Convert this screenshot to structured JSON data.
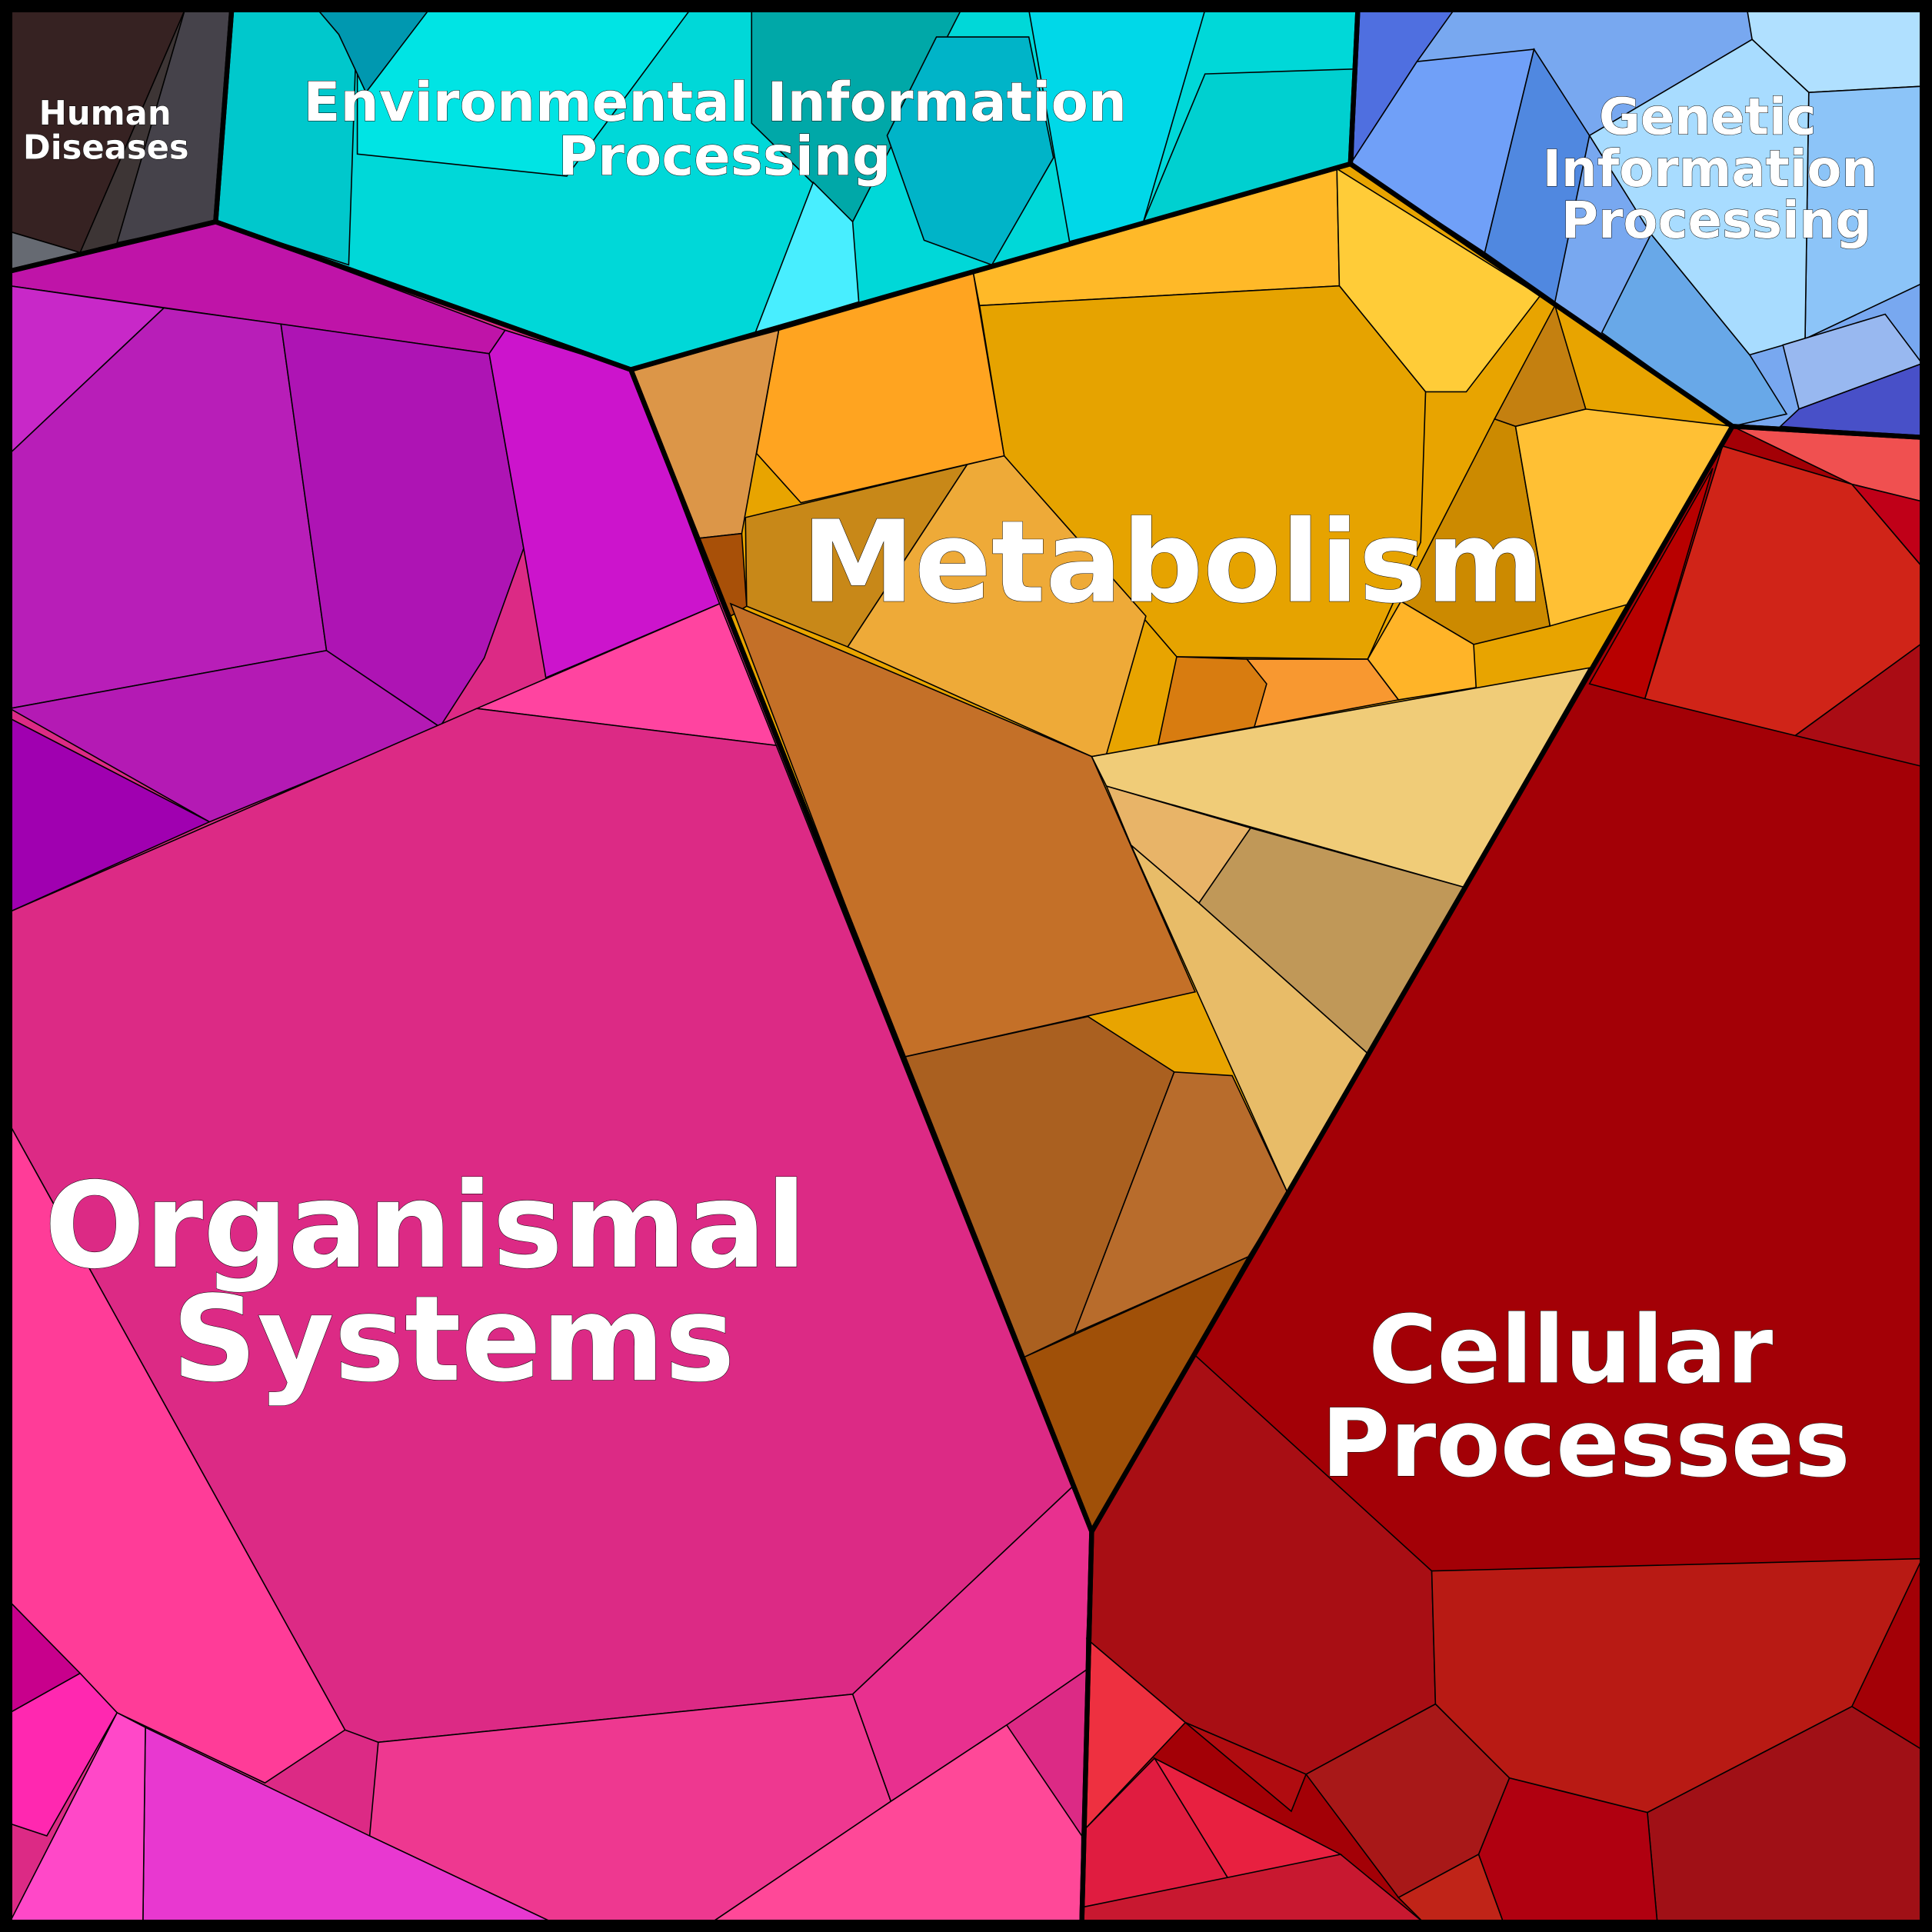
{
  "chart_data": {
    "type": "voronoi-treemap",
    "title": "",
    "categories": [
      "Human Diseases",
      "Environmental Information Processing",
      "Genetic Information Processing",
      "Metabolism",
      "Cellular Processes",
      "Organismal Systems"
    ],
    "labels": {
      "human_diseases": [
        "Human",
        "Diseases"
      ],
      "environmental": [
        "Environmental Information",
        "Processing"
      ],
      "genetic": [
        "Genetic",
        "Information",
        "Processing"
      ],
      "metabolism": [
        "Metabolism"
      ],
      "cellular": [
        "Cellular",
        "Processes"
      ],
      "organismal": [
        "Organismal",
        "Systems"
      ]
    },
    "colors": {
      "human_diseases": "#3d3535",
      "environmental": "#00d8d8",
      "genetic": "#78a8f0",
      "metabolism": "#e8a400",
      "cellular": "#a30006",
      "organismal": "#dc2a85"
    }
  }
}
